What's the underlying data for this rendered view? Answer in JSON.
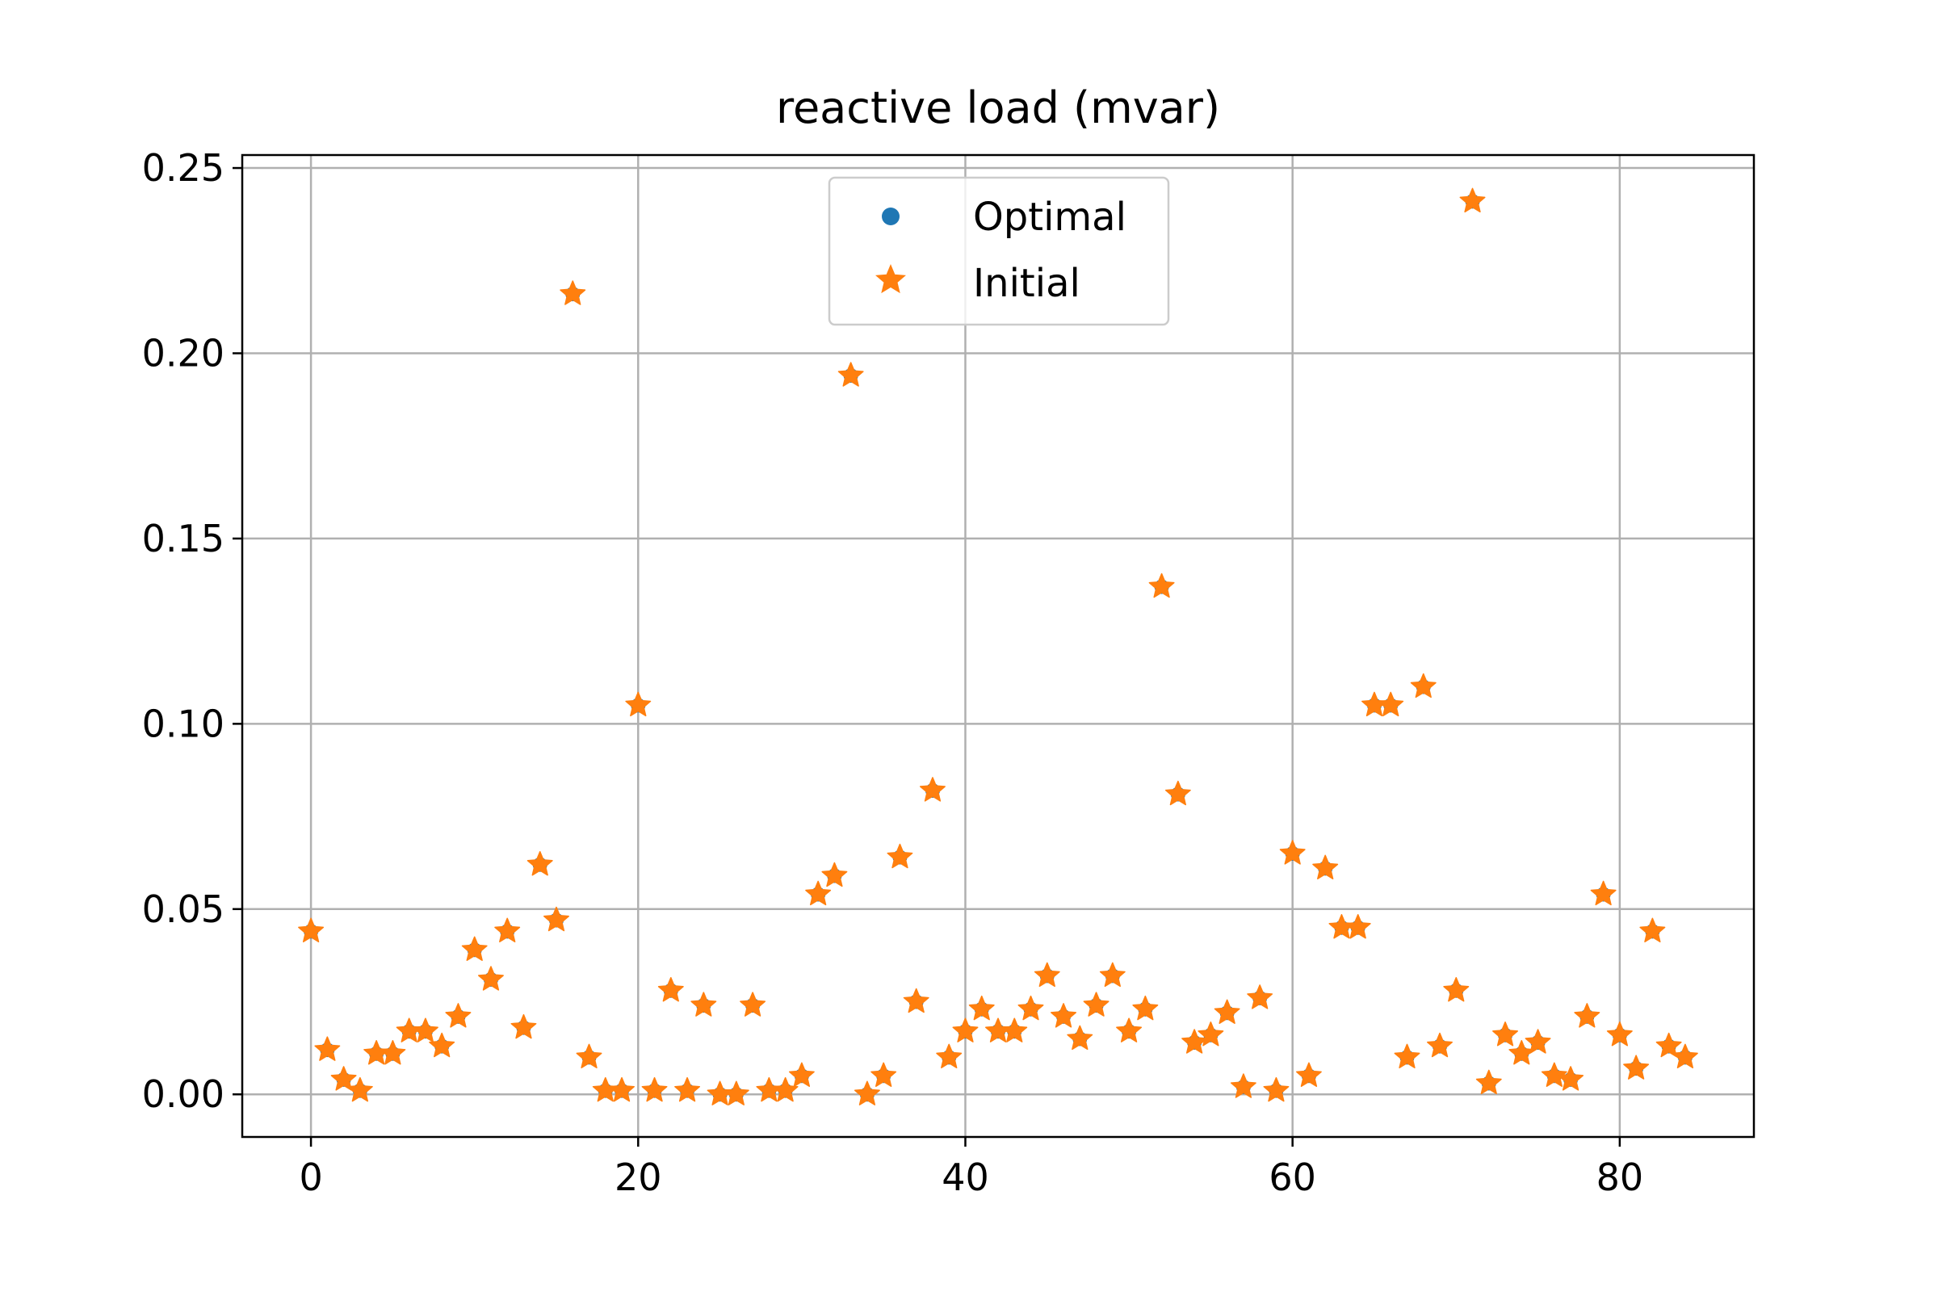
{
  "chart_data": {
    "type": "scatter",
    "title": "reactive load (mvar)",
    "xlabel": "",
    "ylabel": "",
    "xlim": [
      -4.2,
      88.2
    ],
    "ylim": [
      -0.0115,
      0.2535
    ],
    "xticks": [
      0,
      20,
      40,
      60,
      80
    ],
    "yticks": [
      0.0,
      0.05,
      0.1,
      0.15,
      0.2,
      0.25
    ],
    "ytick_labels": [
      "0.00",
      "0.05",
      "0.10",
      "0.15",
      "0.20",
      "0.25"
    ],
    "xtick_labels": [
      "0",
      "20",
      "40",
      "60",
      "80"
    ],
    "grid": true,
    "legend_position": "top-center",
    "x": [
      0,
      1,
      2,
      3,
      4,
      5,
      6,
      7,
      8,
      9,
      10,
      11,
      12,
      13,
      14,
      15,
      16,
      17,
      18,
      19,
      20,
      21,
      22,
      23,
      24,
      25,
      26,
      27,
      28,
      29,
      30,
      31,
      32,
      33,
      34,
      35,
      36,
      37,
      38,
      39,
      40,
      41,
      42,
      43,
      44,
      45,
      46,
      47,
      48,
      49,
      50,
      51,
      52,
      53,
      54,
      55,
      56,
      57,
      58,
      59,
      60,
      61,
      62,
      63,
      64,
      65,
      66,
      67,
      68,
      69,
      70,
      71,
      72,
      73,
      74,
      75,
      76,
      77,
      78,
      79,
      80,
      81,
      82,
      83,
      84
    ],
    "series": [
      {
        "name": "Optimal",
        "marker": "circle",
        "color": "#1f77b4",
        "values": [
          0.044,
          0.012,
          0.004,
          0.001,
          0.011,
          0.011,
          0.017,
          0.017,
          0.013,
          0.021,
          0.039,
          0.031,
          0.044,
          0.018,
          0.062,
          0.047,
          0.216,
          0.01,
          0.001,
          0.001,
          0.105,
          0.001,
          0.028,
          0.001,
          0.024,
          0.0,
          0.0,
          0.024,
          0.001,
          0.001,
          0.005,
          0.054,
          0.059,
          0.194,
          0.0,
          0.005,
          0.064,
          0.025,
          0.082,
          0.01,
          0.017,
          0.023,
          0.017,
          0.017,
          0.023,
          0.032,
          0.021,
          0.015,
          0.024,
          0.032,
          0.017,
          0.023,
          0.137,
          0.081,
          0.014,
          0.016,
          0.022,
          0.002,
          0.026,
          0.001,
          0.065,
          0.005,
          0.061,
          0.045,
          0.045,
          0.105,
          0.105,
          0.01,
          0.11,
          0.013,
          0.028,
          0.241,
          0.003,
          0.016,
          0.011,
          0.014,
          0.005,
          0.004,
          0.021,
          0.054,
          0.016,
          0.007,
          0.044,
          0.013,
          0.01
        ]
      },
      {
        "name": "Initial",
        "marker": "star",
        "color": "#ff7f0e",
        "values": [
          0.044,
          0.012,
          0.004,
          0.001,
          0.011,
          0.011,
          0.017,
          0.017,
          0.013,
          0.021,
          0.039,
          0.031,
          0.044,
          0.018,
          0.062,
          0.047,
          0.216,
          0.01,
          0.001,
          0.001,
          0.105,
          0.001,
          0.028,
          0.001,
          0.024,
          0.0,
          0.0,
          0.024,
          0.001,
          0.001,
          0.005,
          0.054,
          0.059,
          0.194,
          0.0,
          0.005,
          0.064,
          0.025,
          0.082,
          0.01,
          0.017,
          0.023,
          0.017,
          0.017,
          0.023,
          0.032,
          0.021,
          0.015,
          0.024,
          0.032,
          0.017,
          0.023,
          0.137,
          0.081,
          0.014,
          0.016,
          0.022,
          0.002,
          0.026,
          0.001,
          0.065,
          0.005,
          0.061,
          0.045,
          0.045,
          0.105,
          0.105,
          0.01,
          0.11,
          0.013,
          0.028,
          0.241,
          0.003,
          0.016,
          0.011,
          0.014,
          0.005,
          0.004,
          0.021,
          0.054,
          0.016,
          0.007,
          0.044,
          0.013,
          0.01
        ]
      }
    ]
  }
}
